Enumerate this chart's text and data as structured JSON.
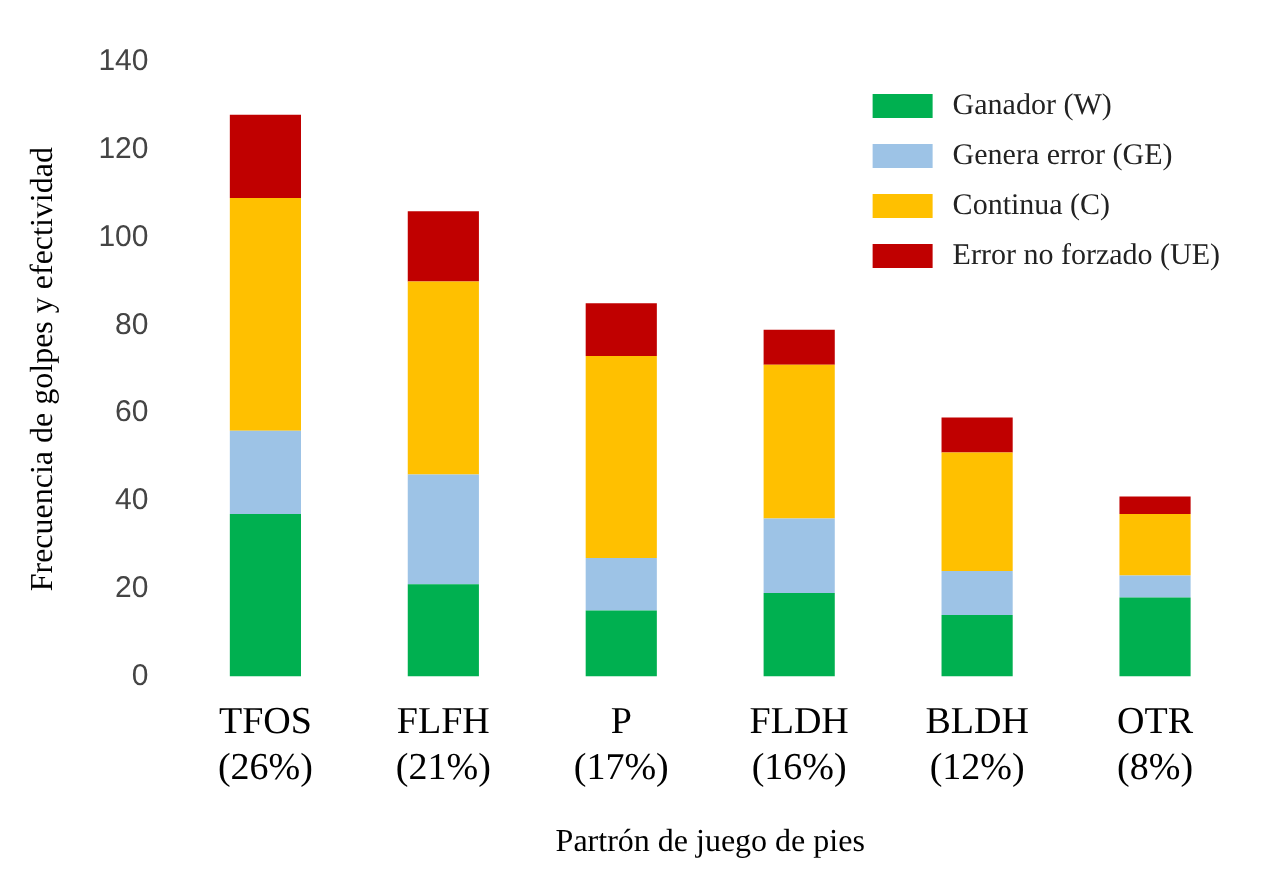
{
  "chart_data": {
    "type": "bar",
    "stacked": true,
    "xlabel": "Partrón de juego de pies",
    "ylabel": "Frecuencia de golpes y efectividad",
    "categories": [
      "TFOS (26%)",
      "FLFH (21%)",
      "P (17%)",
      "FLDH (16%)",
      "BLDH (12%)",
      "OTR (8%)"
    ],
    "series": [
      {
        "name": "Ganador (W)",
        "color": "#00b050",
        "values": [
          37,
          21,
          15,
          19,
          14,
          18
        ]
      },
      {
        "name": "Genera error (GE)",
        "color": "#9dc3e6",
        "values": [
          19,
          25,
          12,
          17,
          10,
          5
        ]
      },
      {
        "name": "Continua (C)",
        "color": "#ffc000",
        "values": [
          53,
          44,
          46,
          35,
          27,
          14
        ]
      },
      {
        "name": "Error no forzado (UE)",
        "color": "#c00000",
        "values": [
          19,
          16,
          12,
          8,
          8,
          4
        ]
      }
    ],
    "ylim": [
      0,
      140
    ],
    "yticks": [
      0,
      20,
      40,
      60,
      80,
      100,
      120,
      140
    ],
    "grid": false,
    "legend": "top right"
  }
}
